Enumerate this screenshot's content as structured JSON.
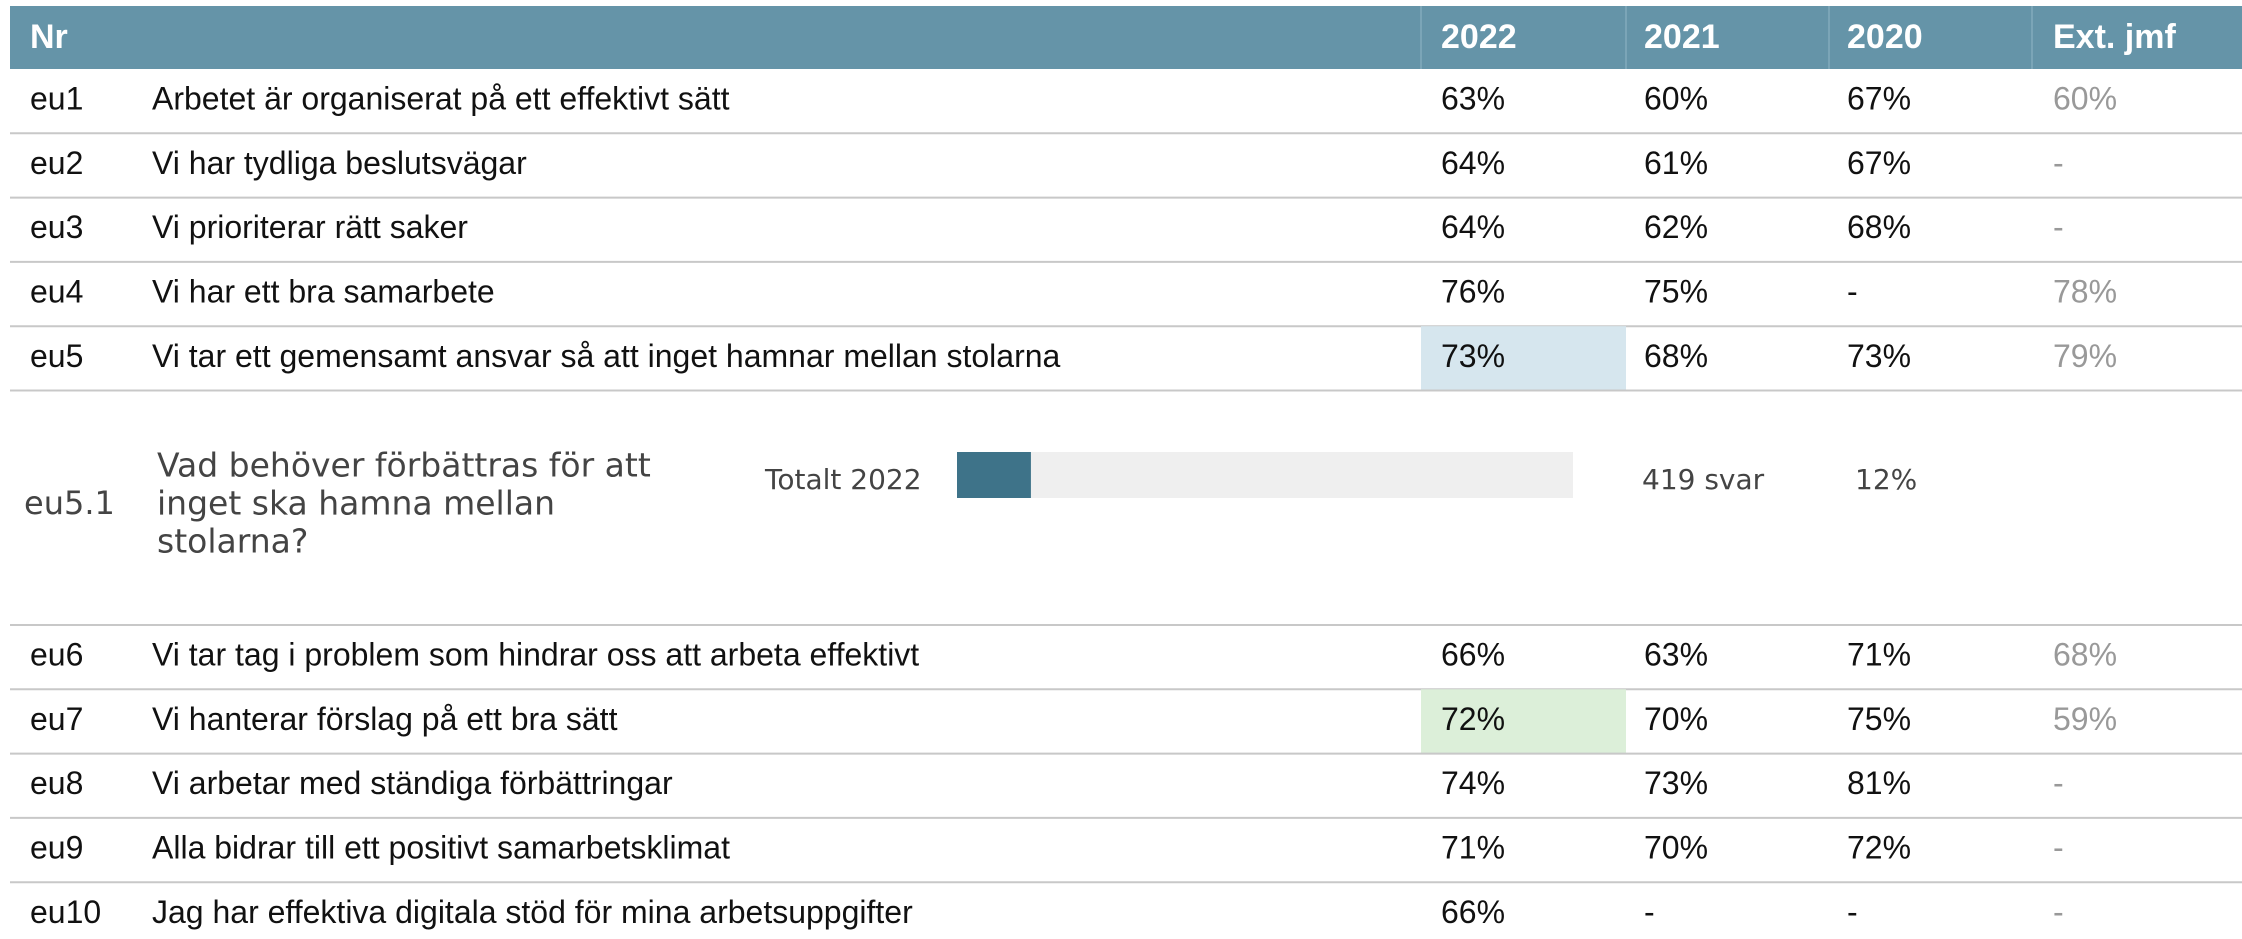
{
  "table": {
    "header": [
      "Nr",
      "",
      "2022",
      "2021",
      "2020",
      "Ext. jmf"
    ],
    "rows_before": [
      {
        "nr": "eu1",
        "question": "Arbetet är organiserat på ett effektivt sätt",
        "cells": [
          "63%",
          "60%",
          "67%",
          "60%"
        ]
      },
      {
        "nr": "eu2",
        "question": "Vi har tydliga beslutsvägar",
        "cells": [
          "64%",
          "61%",
          "67%",
          "-"
        ]
      },
      {
        "nr": "eu3",
        "question": "Vi prioriterar rätt saker",
        "cells": [
          "64%",
          "62%",
          "68%",
          "-"
        ]
      },
      {
        "nr": "eu4",
        "question": "Vi har ett bra samarbete",
        "cells": [
          "76%",
          "75%",
          "-",
          "78%"
        ]
      },
      {
        "nr": "eu5",
        "question": "Vi tar ett gemensamt ansvar så att inget hamnar mellan stolarna",
        "cells": [
          "73%",
          "68%",
          "73%",
          "79%"
        ],
        "highlight": "#d6e6ee"
      }
    ],
    "open_question": {
      "nr": "eu5.1",
      "question_lines": [
        "Vad behöver förbättras för att",
        "inget ska hamna mellan",
        "stolarna?"
      ],
      "bar_label": "Totalt 2022",
      "value": 12,
      "value_label": "12%",
      "xlim": [
        0,
        100
      ],
      "count_label": "419 svar",
      "color": "#3e7389"
    },
    "rows_after": [
      {
        "nr": "eu6",
        "question": "Vi tar tag i problem som hindrar oss att arbeta effektivt",
        "cells": [
          "66%",
          "63%",
          "71%",
          "68%"
        ]
      },
      {
        "nr": "eu7",
        "question": "Vi hanterar förslag på ett bra sätt",
        "cells": [
          "72%",
          "70%",
          "75%",
          "59%"
        ],
        "highlight": "#dcefd9"
      },
      {
        "nr": "eu8",
        "question": "Vi arbetar med ständiga förbättringar",
        "cells": [
          "74%",
          "73%",
          "81%",
          "-"
        ]
      },
      {
        "nr": "eu9",
        "question": "Alla bidrar till ett positivt samarbetsklimat",
        "cells": [
          "71%",
          "70%",
          "72%",
          "-"
        ]
      },
      {
        "nr": "eu10",
        "question": "Jag har effektiva digitala stöd för mina arbetsuppgifter",
        "cells": [
          "66%",
          "-",
          "-",
          "-"
        ]
      }
    ]
  }
}
